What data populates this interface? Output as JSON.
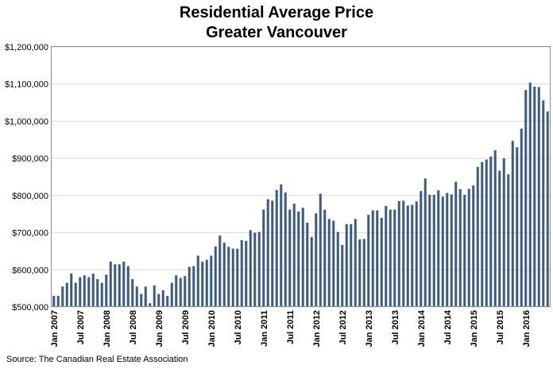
{
  "chart_data": {
    "type": "bar",
    "title": [
      "Residential Average Price",
      "Greater Vancouver"
    ],
    "source": "Source: The Canadian Real Estate Association",
    "ylim": [
      500000,
      1200000
    ],
    "y_ticks": [
      {
        "value": 500000,
        "label": "$500,000"
      },
      {
        "value": 600000,
        "label": "$600,000"
      },
      {
        "value": 700000,
        "label": "$700,000"
      },
      {
        "value": 800000,
        "label": "$800,000"
      },
      {
        "value": 900000,
        "label": "$900,000"
      },
      {
        "value": 1000000,
        "label": "$1,000,000"
      },
      {
        "value": 1100000,
        "label": "$1,100,000"
      },
      {
        "value": 1200000,
        "label": "$1,200,000"
      }
    ],
    "x_tick_labels": [
      "Jan 2007",
      "Jul 2007",
      "Jan 2008",
      "Jul 2008",
      "Jan 2009",
      "Jul 2009",
      "Jan 2010",
      "Jul 2010",
      "Jan 2011",
      "Jul 2011",
      "Jan 2012",
      "Jul 2012",
      "Jan 2013",
      "Jul 2013",
      "Jan 2014",
      "Jul 2014",
      "Jan 2015",
      "Jul 2015",
      "Jan 2016"
    ],
    "x_tick_every": 6,
    "bar_color": "#3d5a80",
    "start": "Jan 2007",
    "values": [
      530000,
      530000,
      555000,
      565000,
      590000,
      565000,
      580000,
      585000,
      580000,
      590000,
      575000,
      565000,
      587000,
      622000,
      615000,
      615000,
      622000,
      610000,
      575000,
      555000,
      535000,
      555000,
      510000,
      558000,
      535000,
      545000,
      530000,
      565000,
      585000,
      578000,
      583000,
      608000,
      610000,
      638000,
      622000,
      627000,
      638000,
      663000,
      692000,
      673000,
      662000,
      657000,
      657000,
      680000,
      678000,
      707000,
      700000,
      702000,
      762000,
      790000,
      786000,
      815000,
      830000,
      808000,
      762000,
      778000,
      757000,
      767000,
      727000,
      688000,
      752000,
      805000,
      762000,
      737000,
      732000,
      702000,
      667000,
      723000,
      723000,
      737000,
      682000,
      683000,
      748000,
      760000,
      760000,
      740000,
      772000,
      762000,
      762000,
      785000,
      786000,
      773000,
      775000,
      784000,
      812000,
      846000,
      802000,
      802000,
      814000,
      797000,
      807000,
      803000,
      837000,
      817000,
      802000,
      818000,
      827000,
      877000,
      890000,
      897000,
      905000,
      922000,
      867000,
      900000,
      857000,
      947000,
      930000,
      980000,
      1084000,
      1104000,
      1093000,
      1092000,
      1056000,
      1026000
    ]
  }
}
